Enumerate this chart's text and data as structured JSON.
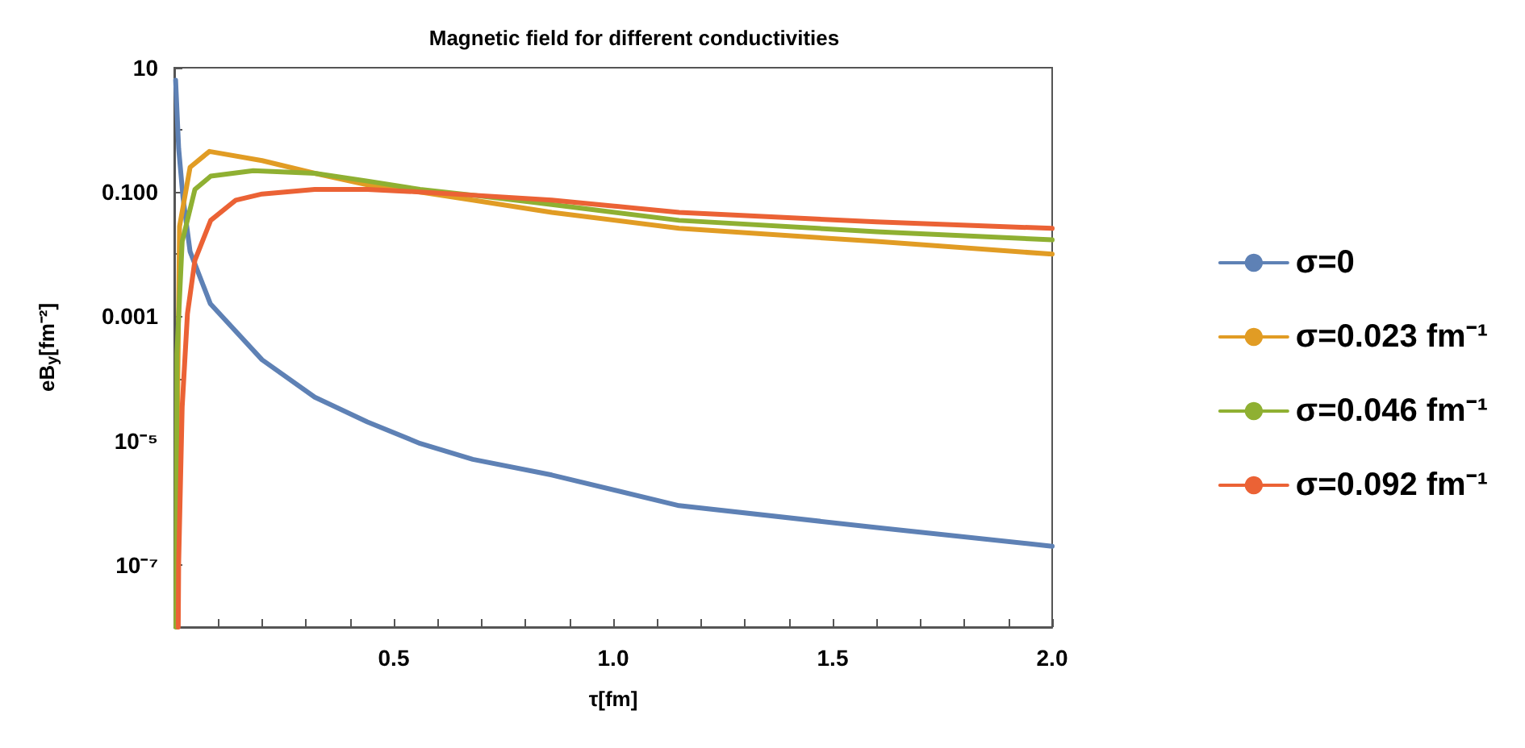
{
  "chart_data": {
    "type": "line",
    "title": "Magnetic field for different conductivities",
    "xlabel": "τ[fm]",
    "ylabel": "eB$_{y}$[fm⁻²]",
    "log": "y",
    "grid": false,
    "legend": "right",
    "line_style": "solid",
    "marker": "none",
    "xlim": [
      0,
      2
    ],
    "ylim": [
      1e-08,
      10
    ],
    "xticks": [
      {
        "value": 0.1,
        "label": null
      },
      {
        "value": 0.2,
        "label": null
      },
      {
        "value": 0.3,
        "label": null
      },
      {
        "value": 0.4,
        "label": null
      },
      {
        "value": 0.5,
        "label": "0.5"
      },
      {
        "value": 0.6,
        "label": null
      },
      {
        "value": 0.7,
        "label": null
      },
      {
        "value": 0.8,
        "label": null
      },
      {
        "value": 0.9,
        "label": null
      },
      {
        "value": 1.0,
        "label": "1.0"
      },
      {
        "value": 1.1,
        "label": null
      },
      {
        "value": 1.2,
        "label": null
      },
      {
        "value": 1.3,
        "label": null
      },
      {
        "value": 1.4,
        "label": null
      },
      {
        "value": 1.5,
        "label": "1.5"
      },
      {
        "value": 1.6,
        "label": null
      },
      {
        "value": 1.7,
        "label": null
      },
      {
        "value": 1.8,
        "label": null
      },
      {
        "value": 1.9,
        "label": null
      },
      {
        "value": 2.0,
        "label": "2.0"
      }
    ],
    "yticks": [
      {
        "value": 1e-08,
        "label": null
      },
      {
        "value": 1e-07,
        "label": "10⁻⁷"
      },
      {
        "value": 1e-06,
        "label": null
      },
      {
        "value": 1e-05,
        "label": "10⁻⁵"
      },
      {
        "value": 0.0001,
        "label": null
      },
      {
        "value": 0.001,
        "label": "0.001"
      },
      {
        "value": 0.01,
        "label": null
      },
      {
        "value": 0.1,
        "label": "0.100"
      },
      {
        "value": 1,
        "label": null
      },
      10
    ],
    "series": [
      {
        "name": "σ=0",
        "color": "#5e81b5",
        "x": [
          0.003,
          0.01,
          0.02,
          0.036,
          0.082,
          0.2,
          0.32,
          0.44,
          0.56,
          0.68,
          0.86,
          1.15,
          1.6,
          2.0
        ],
        "values": [
          6.3,
          0.5,
          0.08,
          0.011,
          0.0016,
          0.0002,
          5e-05,
          2e-05,
          9e-06,
          5e-06,
          2.8e-06,
          9e-07,
          4e-07,
          2e-07
        ]
      },
      {
        "name": "σ=0.023 fm⁻¹",
        "color": "#e19c24",
        "x": [
          0.005,
          0.008,
          0.012,
          0.036,
          0.08,
          0.2,
          0.32,
          0.44,
          0.56,
          0.68,
          0.86,
          1.15,
          1.6,
          2.0
        ],
        "values": [
          1e-08,
          0.0001,
          0.028,
          0.25,
          0.45,
          0.32,
          0.2,
          0.13,
          0.1,
          0.074,
          0.047,
          0.026,
          0.016,
          0.01
        ]
      },
      {
        "name": "σ=0.046 fm⁻¹",
        "color": "#8fb032",
        "x": [
          0.004,
          0.006,
          0.018,
          0.047,
          0.083,
          0.18,
          0.32,
          0.44,
          0.56,
          0.68,
          0.86,
          1.15,
          1.6,
          2.0
        ],
        "values": [
          1e-08,
          0.00025,
          0.016,
          0.11,
          0.18,
          0.22,
          0.2,
          0.15,
          0.11,
          0.089,
          0.063,
          0.035,
          0.023,
          0.017
        ]
      },
      {
        "name": "σ=0.092 fm⁻¹",
        "color": "#eb6235",
        "x": [
          0.009,
          0.01,
          0.018,
          0.03,
          0.047,
          0.083,
          0.14,
          0.2,
          0.32,
          0.44,
          0.56,
          0.68,
          0.86,
          1.15,
          1.6,
          2.0
        ],
        "values": [
          1e-08,
          1.1e-07,
          3.5e-05,
          0.0011,
          0.008,
          0.035,
          0.074,
          0.093,
          0.11,
          0.11,
          0.1,
          0.089,
          0.074,
          0.047,
          0.033,
          0.026
        ]
      }
    ]
  }
}
